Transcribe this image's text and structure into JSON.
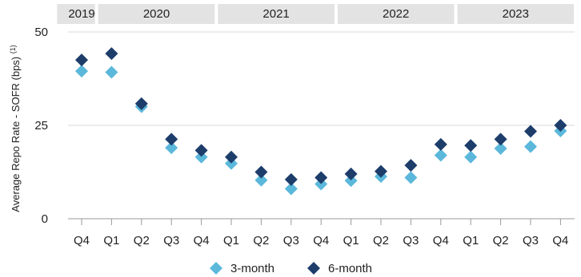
{
  "chart_data": {
    "type": "scatter",
    "ylabel": "Average Repo Rate - SOFR (bps)",
    "ylabel_footnote": "(1)",
    "ylim": [
      0,
      50
    ],
    "yticks": [
      0,
      25,
      50
    ],
    "grid": "horizontal",
    "legend_position": "bottom-center",
    "x": [
      "Q4",
      "Q1",
      "Q2",
      "Q3",
      "Q4",
      "Q1",
      "Q2",
      "Q3",
      "Q4",
      "Q1",
      "Q2",
      "Q3",
      "Q4",
      "Q1",
      "Q2",
      "Q3",
      "Q4"
    ],
    "year_groups": [
      {
        "label": "2019",
        "count": 1
      },
      {
        "label": "2020",
        "count": 4
      },
      {
        "label": "2021",
        "count": 4
      },
      {
        "label": "2022",
        "count": 4
      },
      {
        "label": "2023",
        "count": 4
      }
    ],
    "series": [
      {
        "name": "3-month",
        "color": "#5bb8db",
        "values": [
          39.5,
          39.2,
          30.0,
          19.0,
          16.5,
          14.8,
          10.3,
          8.0,
          9.3,
          10.2,
          11.3,
          11.0,
          17.0,
          16.5,
          18.8,
          19.3,
          23.5
        ]
      },
      {
        "name": "6-month",
        "color": "#1d3d6b",
        "values": [
          42.5,
          44.2,
          30.8,
          21.3,
          18.3,
          16.5,
          12.5,
          10.5,
          11.0,
          12.0,
          12.7,
          14.3,
          19.9,
          19.6,
          21.3,
          23.4,
          25.0
        ]
      }
    ]
  }
}
